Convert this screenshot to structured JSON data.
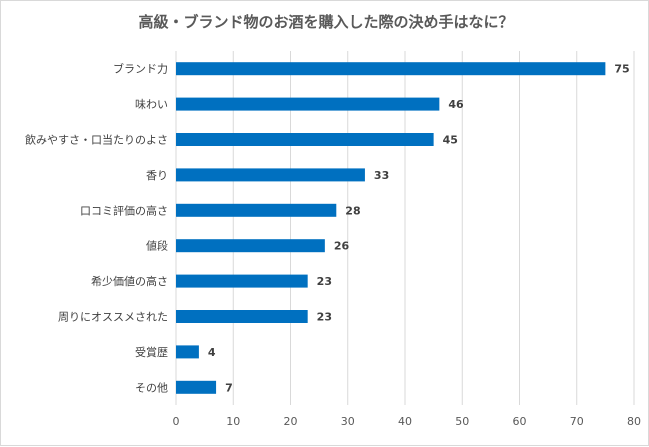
{
  "chart_data": {
    "type": "bar",
    "orientation": "horizontal",
    "title": "高級・ブランド物のお酒を購入した際の決め手はなに？",
    "categories": [
      "ブランド力",
      "味わい",
      "飲みやすさ・口当たりのよさ",
      "香り",
      "口コミ評価の高さ",
      "値段",
      "希少価値の高さ",
      "周りにオススメされた",
      "受賞歴",
      "その他"
    ],
    "values": [
      75,
      46,
      45,
      33,
      28,
      26,
      23,
      23,
      4,
      7
    ],
    "xlim": [
      0,
      80
    ],
    "xticks": [
      0,
      10,
      20,
      30,
      40,
      50,
      60,
      70,
      80
    ],
    "xlabel": "",
    "ylabel": "",
    "grid": "vertical",
    "bar_color": "#0070c0",
    "grid_color": "#d9d9d9"
  }
}
